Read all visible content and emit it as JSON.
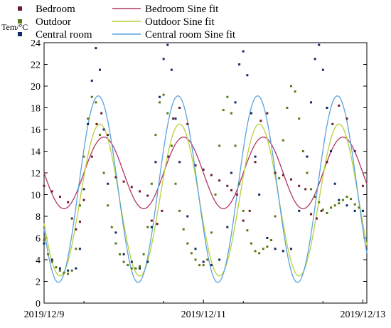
{
  "chart_data": {
    "type": "scatter",
    "ylabel": "Tem/°C",
    "xlabel": "",
    "ylim": [
      0,
      24
    ],
    "xlim": [
      0,
      4.05
    ],
    "yticks": [
      0,
      2,
      4,
      6,
      8,
      10,
      12,
      14,
      16,
      18,
      20,
      22,
      24
    ],
    "xticks": [
      {
        "value": 0,
        "label": "2019/12/9"
      },
      {
        "value": 2,
        "label": "2019/12/11"
      },
      {
        "value": 4,
        "label": "2019/12/13"
      }
    ],
    "legend": {
      "placement": "top-left",
      "entries": [
        {
          "label": "Bedroom",
          "kind": "marker",
          "color": "#6e1a2a"
        },
        {
          "label": "Bedroom Sine fit",
          "kind": "line",
          "color": "#b03566"
        },
        {
          "label": "Outdoor",
          "kind": "marker",
          "color": "#5a7a0f"
        },
        {
          "label": "Outdoor Sine fit",
          "kind": "line",
          "color": "#b9cf3a"
        },
        {
          "label": "Central room",
          "kind": "marker",
          "color": "#0f2a66"
        },
        {
          "label": "Central room Sine fit",
          "kind": "line",
          "color": "#5aa3dd"
        }
      ]
    },
    "series": [
      {
        "name": "Bedroom",
        "kind": "scatter",
        "color": "#6e1a2a",
        "x": [
          0.0,
          0.1,
          0.2,
          0.3,
          0.35,
          0.4,
          0.45,
          0.5,
          0.6,
          0.66,
          0.72,
          0.8,
          0.9,
          1.0,
          1.1,
          1.2,
          1.3,
          1.35,
          1.42,
          1.48,
          1.56,
          1.62,
          1.7,
          1.8,
          1.9,
          2.0,
          2.1,
          2.2,
          2.3,
          2.35,
          2.42,
          2.5,
          2.58,
          2.65,
          2.72,
          2.8,
          2.9,
          3.0,
          3.1,
          3.2,
          3.28,
          3.35,
          3.42,
          3.48,
          3.55,
          3.62,
          3.7,
          3.8,
          3.9,
          4.0
        ],
        "y": [
          10.8,
          10.3,
          9.8,
          9.3,
          7.8,
          6.8,
          7.5,
          9.5,
          13.5,
          16.5,
          17.5,
          15.5,
          11.6,
          11.2,
          10.7,
          10.3,
          9.9,
          7.6,
          7.3,
          8.5,
          13.5,
          17.0,
          18.0,
          16.5,
          12.7,
          12.3,
          11.8,
          11.3,
          10.8,
          10.4,
          10.0,
          7.6,
          8.5,
          13.0,
          16.8,
          17.5,
          12.0,
          11.8,
          11.4,
          10.8,
          10.5,
          8.2,
          7.8,
          8.5,
          13.0,
          16.5,
          18.2,
          17.0,
          14.0,
          10.8
        ]
      },
      {
        "name": "Outdoor",
        "kind": "scatter",
        "color": "#5a7a0f",
        "x": [
          0.0,
          0.05,
          0.1,
          0.15,
          0.2,
          0.25,
          0.3,
          0.35,
          0.4,
          0.45,
          0.5,
          0.55,
          0.6,
          0.65,
          0.7,
          0.75,
          0.8,
          0.85,
          0.9,
          0.95,
          1.0,
          1.05,
          1.1,
          1.15,
          1.2,
          1.25,
          1.3,
          1.35,
          1.4,
          1.45,
          1.5,
          1.55,
          1.6,
          1.65,
          1.7,
          1.75,
          1.8,
          1.85,
          1.9,
          1.95,
          2.0,
          2.05,
          2.1,
          2.15,
          2.2,
          2.25,
          2.3,
          2.35,
          2.4,
          2.45,
          2.5,
          2.55,
          2.6,
          2.65,
          2.7,
          2.75,
          2.8,
          2.85,
          2.9,
          2.95,
          3.0,
          3.05,
          3.1,
          3.15,
          3.2,
          3.25,
          3.3,
          3.35,
          3.4,
          3.45,
          3.5,
          3.55,
          3.6,
          3.65,
          3.7,
          3.75,
          3.8,
          3.85,
          3.9,
          3.95,
          4.0
        ],
        "y": [
          5.8,
          4.5,
          3.8,
          3.3,
          3.0,
          2.8,
          2.7,
          3.0,
          5.0,
          9.0,
          13.5,
          17.0,
          19.0,
          18.5,
          15.5,
          12.0,
          9.0,
          7.0,
          5.5,
          4.5,
          3.8,
          3.5,
          3.2,
          3.2,
          3.4,
          4.5,
          7.0,
          11.0,
          15.5,
          18.5,
          19.2,
          17.5,
          14.5,
          11.0,
          8.5,
          6.8,
          5.5,
          4.6,
          4.0,
          3.5,
          3.5,
          4.0,
          6.5,
          10.0,
          14.5,
          17.8,
          19.0,
          17.5,
          14.5,
          11.0,
          8.5,
          6.7,
          5.5,
          4.8,
          4.6,
          5.0,
          5.2,
          5.8,
          8.0,
          11.5,
          15.0,
          18.0,
          20.0,
          19.5,
          17.0,
          14.0,
          12.0,
          10.5,
          9.8,
          9.3,
          8.6,
          8.3,
          8.8,
          9.0,
          9.2,
          9.5,
          9.8,
          9.6,
          9.1,
          8.8,
          8.5
        ]
      },
      {
        "name": "Central room",
        "kind": "scatter",
        "color": "#0f2a66",
        "x": [
          0.0,
          0.1,
          0.2,
          0.3,
          0.4,
          0.45,
          0.5,
          0.55,
          0.6,
          0.65,
          0.7,
          0.75,
          0.8,
          0.9,
          1.0,
          1.1,
          1.2,
          1.3,
          1.35,
          1.4,
          1.45,
          1.5,
          1.55,
          1.6,
          1.65,
          1.7,
          1.8,
          1.9,
          2.0,
          2.1,
          2.2,
          2.3,
          2.35,
          2.4,
          2.45,
          2.5,
          2.55,
          2.6,
          2.65,
          2.7,
          2.8,
          2.9,
          3.0,
          3.1,
          3.2,
          3.3,
          3.35,
          3.4,
          3.45,
          3.5,
          3.55,
          3.6,
          3.65,
          3.7,
          3.8,
          3.9,
          4.0
        ],
        "y": [
          5.5,
          4.0,
          3.2,
          3.0,
          3.2,
          5.0,
          10.5,
          16.5,
          20.5,
          23.5,
          21.5,
          16.0,
          11.0,
          6.5,
          4.5,
          3.8,
          3.2,
          3.8,
          7.0,
          13.0,
          19.0,
          22.5,
          23.8,
          21.5,
          17.0,
          13.0,
          8.0,
          5.0,
          3.8,
          3.5,
          4.0,
          7.0,
          12.0,
          18.5,
          22.0,
          23.2,
          21.0,
          17.5,
          13.5,
          10.0,
          6.0,
          5.0,
          4.8,
          5.0,
          8.5,
          13.5,
          18.5,
          22.5,
          23.8,
          21.5,
          18.0,
          14.0,
          11.0,
          9.5,
          9.0,
          8.5,
          8.5
        ]
      },
      {
        "name": "Bedroom Sine fit",
        "kind": "sine",
        "color": "#b03566",
        "mean": 12.0,
        "amplitude": 3.3,
        "period": 1.0,
        "peak_x": 0.75,
        "x_range": [
          0.0,
          4.05
        ]
      },
      {
        "name": "Outdoor Sine fit",
        "kind": "sine",
        "color": "#b9cf3a",
        "mean": 9.5,
        "amplitude": 7.0,
        "period": 1.0,
        "peak_x": 0.7,
        "x_range": [
          0.0,
          4.05
        ]
      },
      {
        "name": "Central room Sine fit",
        "kind": "sine",
        "color": "#5aa3dd",
        "mean": 10.5,
        "amplitude": 8.6,
        "period": 1.0,
        "peak_x": 0.68,
        "x_range": [
          0.0,
          4.05
        ]
      }
    ]
  }
}
